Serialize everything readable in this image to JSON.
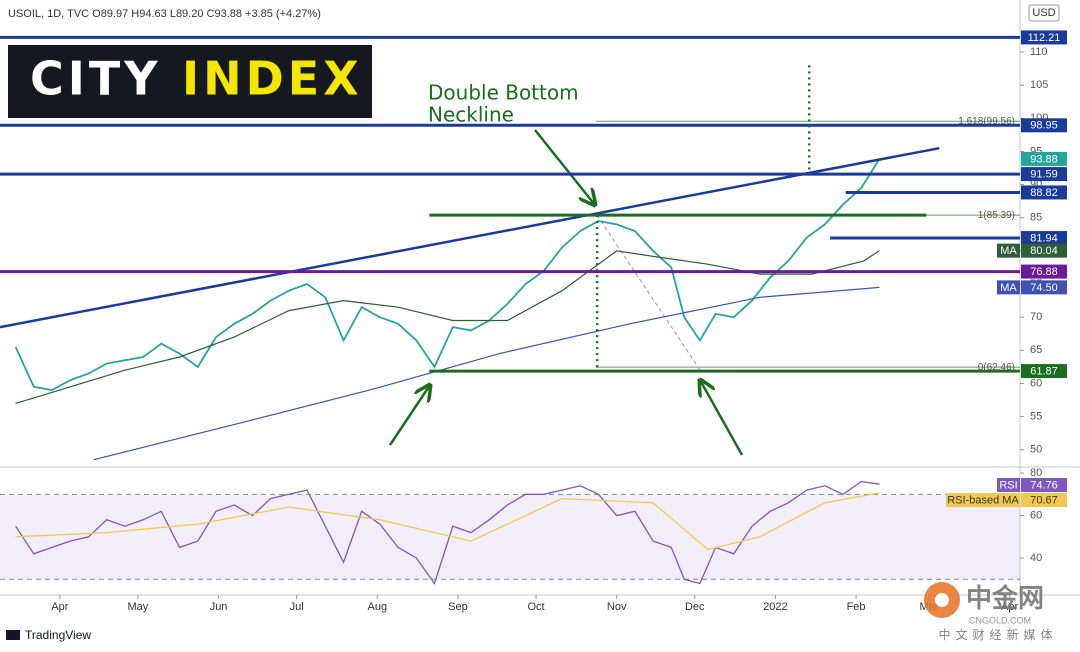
{
  "header": "USOIL, 1D, TVC O89.97 H94.63 L89.20 C93.88 +3.85 (+4.27%)",
  "currency": "USD",
  "logo": [
    "CITY",
    "INDEX"
  ],
  "footer": "TradingView",
  "watermark": {
    "name": "中金网",
    "site": "CNGOLD.COM",
    "tagline": "中文财经新媒体"
  },
  "chart_data": [
    {
      "type": "line",
      "annotations": [
        "Double Bottom",
        "Neckline"
      ],
      "xlim": [
        8,
        400
      ],
      "ylim": [
        47.7,
        117.1
      ],
      "yticks": [
        50,
        55,
        60,
        65,
        70,
        75,
        80,
        85,
        90,
        95,
        100,
        105,
        110
      ],
      "xticks": [
        {
          "value": 31,
          "label": "Apr"
        },
        {
          "value": 61,
          "label": "May"
        },
        {
          "value": 92,
          "label": "Jun"
        },
        {
          "value": 122,
          "label": "Jul"
        },
        {
          "value": 153,
          "label": "Aug"
        },
        {
          "value": 184,
          "label": "Sep"
        },
        {
          "value": 214,
          "label": "Oct"
        },
        {
          "value": 245,
          "label": "Nov"
        },
        {
          "value": 275,
          "label": "Dec"
        },
        {
          "value": 306,
          "label": "2022"
        },
        {
          "value": 337,
          "label": "Feb"
        },
        {
          "value": 365,
          "label": "Mar"
        },
        {
          "value": 396,
          "label": "Apr"
        }
      ],
      "series": [
        {
          "color": "#26a69a",
          "x": [
            14,
            21,
            28,
            35,
            42,
            49,
            56,
            63,
            70,
            77,
            84,
            91,
            98,
            105,
            112,
            119,
            126,
            133,
            140,
            147,
            154,
            161,
            168,
            175,
            182,
            189,
            196,
            203,
            210,
            217,
            224,
            231,
            238,
            245,
            252,
            259,
            266,
            271,
            277,
            283,
            290,
            297,
            304,
            311,
            318,
            325,
            332,
            339,
            346
          ],
          "values": [
            65.5,
            59.5,
            59,
            60.5,
            61.5,
            63,
            63.5,
            64,
            66,
            64.5,
            62.5,
            67,
            69,
            70.5,
            72.5,
            74,
            75,
            73,
            66.5,
            71.5,
            70,
            69,
            66.5,
            62.5,
            68.5,
            68,
            69.5,
            72,
            75,
            77,
            80.5,
            83,
            84.5,
            84,
            83,
            80,
            77.5,
            70,
            66.5,
            70.5,
            70,
            72.5,
            76,
            78.5,
            82,
            84,
            87,
            89.5,
            93.88
          ]
        },
        {
          "name": "MA",
          "color": "#2e5d3a",
          "x": [
            14,
            35,
            56,
            77,
            98,
            119,
            140,
            161,
            182,
            203,
            224,
            245,
            262,
            280,
            300,
            320,
            340,
            346
          ],
          "values": [
            57,
            59.5,
            62,
            64,
            67,
            71,
            72.5,
            71.5,
            69.5,
            69.5,
            74,
            80,
            79,
            78,
            76.5,
            76.5,
            78.5,
            80.04
          ]
        },
        {
          "name": "MA",
          "color": "#3f51b5",
          "x": [
            44,
            100,
            150,
            200,
            250,
            300,
            346
          ],
          "values": [
            48.5,
            54,
            59,
            64.5,
            69,
            73,
            74.5
          ],
          "value_labels": [
            null,
            null,
            null,
            null,
            null,
            null,
            "74.50"
          ]
        }
      ],
      "levels": [
        {
          "value": 112.21,
          "color": "#1a3a9c",
          "label_box": true
        },
        {
          "value": 98.95,
          "color": "#1a3a9c",
          "label_box": true
        },
        {
          "value": 91.59,
          "color": "#1a3a9c",
          "label_box": true
        },
        {
          "value": 88.82,
          "color": "#1a3a9c",
          "label_box": true,
          "x0": 333
        },
        {
          "value": 81.94,
          "color": "#1a3a9c",
          "label_box": true,
          "x0": 327
        },
        {
          "value": 76.88,
          "color": "#6a1b9a",
          "label_box": true
        },
        {
          "value": 85.39,
          "color": "#1b6e20",
          "label_box": false,
          "x0": 173,
          "x1": 364
        },
        {
          "value": 61.87,
          "color": "#1b6e20",
          "label_box": true,
          "x0": 173
        }
      ],
      "fib_levels": [
        {
          "value": 99.56,
          "label": "1.618(99.56)"
        },
        {
          "value": 85.39,
          "label": "1(85.39)"
        },
        {
          "value": 62.46,
          "label": "0(62.46)"
        }
      ],
      "fib_start": 237,
      "trendline": {
        "x": [
          8,
          369
        ],
        "values": [
          68.5,
          95.5
        ]
      },
      "verticals": [
        {
          "x": 237.5,
          "values": [
            85.39,
            61.87
          ]
        },
        {
          "x": 319,
          "values": [
            108,
            91.59
          ]
        }
      ]
    },
    {
      "type": "line",
      "xlim": [
        8,
        400
      ],
      "ylim": [
        22.6,
        82.4
      ],
      "yticks": [
        40,
        60,
        80
      ],
      "band": [
        30,
        70
      ],
      "series": [
        {
          "name": "RSI",
          "color": "#7e57c2",
          "x": [
            14,
            21,
            28,
            35,
            42,
            49,
            56,
            63,
            70,
            77,
            84,
            91,
            98,
            105,
            112,
            119,
            126,
            133,
            140,
            147,
            154,
            161,
            168,
            175,
            182,
            189,
            196,
            203,
            210,
            217,
            224,
            231,
            238,
            245,
            252,
            259,
            266,
            271,
            277,
            283,
            290,
            297,
            304,
            311,
            318,
            325,
            332,
            339,
            346
          ],
          "values": [
            55,
            42,
            45,
            48,
            50,
            58,
            55,
            58,
            62,
            45,
            48,
            62,
            65,
            60,
            68,
            70,
            72,
            55,
            38,
            62,
            56,
            45,
            40,
            28,
            55,
            52,
            58,
            65,
            70,
            70,
            72,
            74,
            70,
            60,
            62,
            48,
            45,
            30,
            28,
            45,
            42,
            55,
            62,
            66,
            72,
            74,
            70,
            76,
            74.76
          ]
        },
        {
          "name": "RSI-based MA",
          "color": "#f2c94c",
          "x": [
            14,
            49,
            84,
            119,
            154,
            189,
            224,
            259,
            280,
            300,
            325,
            346
          ],
          "values": [
            50,
            52,
            56,
            64,
            58,
            48,
            68,
            66,
            44,
            50,
            66,
            70.67
          ]
        }
      ]
    }
  ]
}
